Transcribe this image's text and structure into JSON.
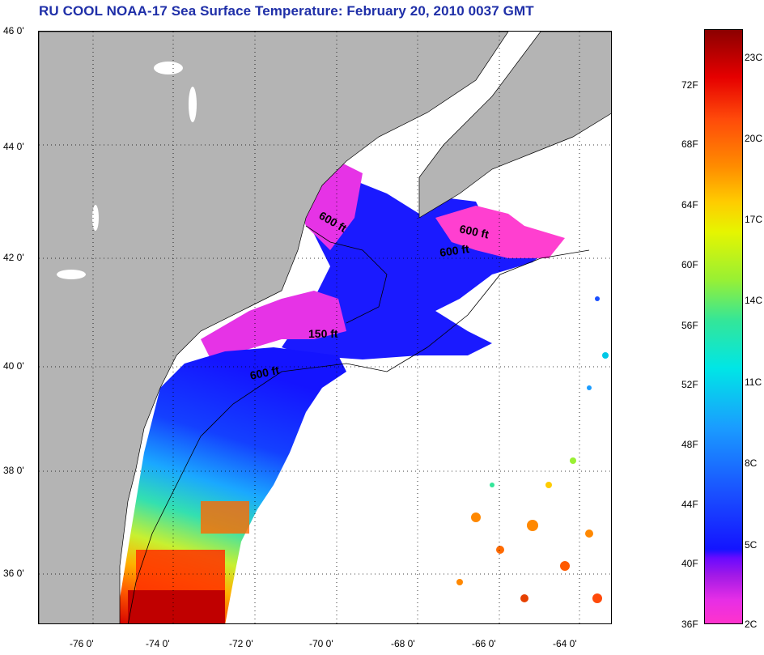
{
  "title": "RU COOL  NOAA-17  Sea Surface Temperature:  February 20, 2010 0037 GMT",
  "latitude_labels": [
    "46 0'",
    "44 0'",
    "42 0'",
    "40 0'",
    "38 0'",
    "36 0'"
  ],
  "longitude_labels": [
    "-76 0'",
    "-74 0'",
    "-72 0'",
    "-70 0'",
    "-68 0'",
    "-66 0'",
    "-64 0'"
  ],
  "depth_contours": [
    "600 ft",
    "600 ft",
    "600 ft",
    "150 ft",
    "600 ft"
  ],
  "colorbar": {
    "fahrenheit_labels": [
      "72F",
      "68F",
      "64F",
      "60F",
      "56F",
      "52F",
      "48F",
      "44F",
      "40F",
      "36F"
    ],
    "celsius_labels": [
      "23C",
      "20C",
      "17C",
      "14C",
      "11C",
      "8C",
      "5C",
      "2C"
    ],
    "colors": [
      "#ff33cc",
      "#a31ae6",
      "#1414ff",
      "#1a9cff",
      "#00e6e6",
      "#99f033",
      "#e6f500",
      "#ff8c00",
      "#e60000",
      "#8b0000"
    ]
  },
  "colors": {
    "land": "#b4b4b4",
    "no_data": "#ffffff",
    "title": "#1f2fa8"
  }
}
